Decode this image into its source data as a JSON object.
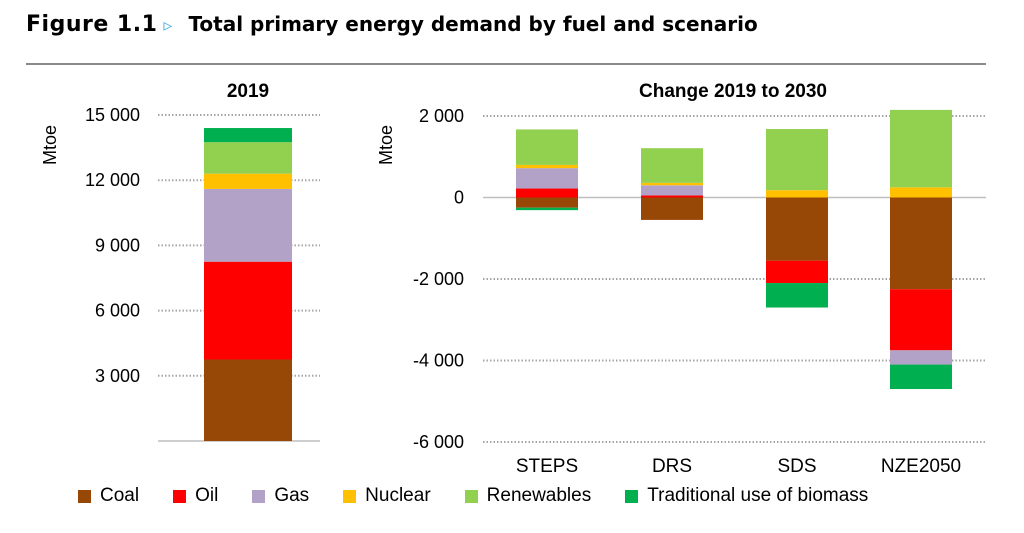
{
  "figure": {
    "label": "Figure 1.1",
    "arrow": "▹",
    "title": "Total primary energy demand by fuel and scenario"
  },
  "colors": {
    "Coal": "#974706",
    "Oil": "#FF0000",
    "Gas": "#B3A2C7",
    "Nuclear": "#FFC000",
    "Renewables": "#92D050",
    "Traditional use of biomass": "#00B050"
  },
  "chart_data": [
    {
      "type": "bar",
      "stacked": true,
      "title": "2019",
      "ylabel": "Mtoe",
      "ylim": [
        0,
        15000
      ],
      "yticks": [
        3000,
        6000,
        9000,
        12000,
        15000
      ],
      "ytick_labels": [
        "3 000",
        "6 000",
        "9 000",
        "12 000",
        "15 000"
      ],
      "grid": true,
      "categories": [
        "2019"
      ],
      "series": [
        {
          "name": "Coal",
          "values": [
            3750
          ]
        },
        {
          "name": "Oil",
          "values": [
            4500
          ]
        },
        {
          "name": "Gas",
          "values": [
            3350
          ]
        },
        {
          "name": "Nuclear",
          "values": [
            700
          ]
        },
        {
          "name": "Renewables",
          "values": [
            1450
          ]
        },
        {
          "name": "Traditional use of biomass",
          "values": [
            650
          ]
        }
      ]
    },
    {
      "type": "bar",
      "stacked": true,
      "title": "Change 2019 to 2030",
      "ylabel": "Mtoe",
      "ylim": [
        -6000,
        2000
      ],
      "yticks": [
        -6000,
        -4000,
        -2000,
        0,
        2000
      ],
      "ytick_labels": [
        "-6 000",
        "-4 000",
        "-2 000",
        "0",
        "2 000"
      ],
      "grid": true,
      "categories": [
        "STEPS",
        "DRS",
        "SDS",
        "NZE2050"
      ],
      "series": [
        {
          "name": "Coal",
          "values": [
            -250,
            -550,
            -1550,
            -2250
          ]
        },
        {
          "name": "Oil",
          "values": [
            220,
            50,
            -550,
            -1500
          ]
        },
        {
          "name": "Gas",
          "values": [
            500,
            250,
            0,
            -350
          ]
        },
        {
          "name": "Nuclear",
          "values": [
            80,
            60,
            180,
            250
          ]
        },
        {
          "name": "Renewables",
          "values": [
            870,
            850,
            1500,
            1900
          ]
        },
        {
          "name": "Traditional use of biomass",
          "values": [
            -60,
            0,
            -600,
            -600
          ]
        }
      ]
    }
  ],
  "legend": [
    "Coal",
    "Oil",
    "Gas",
    "Nuclear",
    "Renewables",
    "Traditional use of biomass"
  ]
}
